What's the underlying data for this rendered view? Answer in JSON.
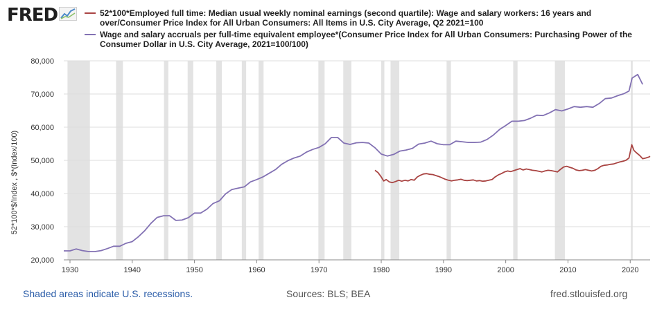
{
  "brand": {
    "name": "FRED",
    "icon": "fred-chart-icon"
  },
  "colors": {
    "series1": "#a94442",
    "series2": "#8271b3",
    "recession": "#e3e3e3",
    "grid": "#dcdcdc",
    "link": "#2a5ca8"
  },
  "footer": {
    "recession_note": "Shaded areas indicate U.S. recessions.",
    "sources": "Sources: BLS; BEA",
    "site": "fred.stlouisfed.org"
  },
  "chart_data": {
    "type": "line",
    "ylabel": "52*100*$/Index , $*(Index/100)",
    "xlim": [
      1929,
      2023.2
    ],
    "ylim": [
      20000,
      80000
    ],
    "x_ticks": [
      1930,
      1940,
      1950,
      1960,
      1970,
      1980,
      1990,
      2000,
      2010,
      2020
    ],
    "y_ticks": [
      20000,
      30000,
      40000,
      50000,
      60000,
      70000,
      80000
    ],
    "y_tick_labels": [
      "20,000",
      "30,000",
      "40,000",
      "50,000",
      "60,000",
      "70,000",
      "80,000"
    ],
    "grid": true,
    "legend_position": "top",
    "recessions": [
      [
        1929.6,
        1933.2
      ],
      [
        1937.4,
        1938.5
      ],
      [
        1945.1,
        1945.8
      ],
      [
        1948.9,
        1949.8
      ],
      [
        1953.5,
        1954.4
      ],
      [
        1957.6,
        1958.3
      ],
      [
        1960.3,
        1961.1
      ],
      [
        1969.9,
        1970.9
      ],
      [
        1973.9,
        1975.2
      ],
      [
        1980.0,
        1980.5
      ],
      [
        1981.5,
        1982.9
      ],
      [
        1990.5,
        1991.2
      ],
      [
        2001.2,
        2001.9
      ],
      [
        2007.9,
        2009.5
      ],
      [
        2020.1,
        2020.4
      ]
    ],
    "series": [
      {
        "name": "52*100*Employed full time: Median usual weekly nominal earnings (second quartile): Wage and salary workers: 16 years and over/Consumer Price Index for All Urban Consumers: All Items in U.S. City Average, Q2 2021=100",
        "color": "#a94442",
        "points": [
          [
            1979.0,
            47000
          ],
          [
            1979.5,
            46300
          ],
          [
            1980.0,
            45000
          ],
          [
            1980.4,
            43800
          ],
          [
            1980.8,
            44200
          ],
          [
            1981.3,
            43500
          ],
          [
            1981.8,
            43300
          ],
          [
            1982.3,
            43600
          ],
          [
            1982.8,
            44000
          ],
          [
            1983.3,
            43700
          ],
          [
            1983.8,
            44000
          ],
          [
            1984.3,
            43800
          ],
          [
            1984.8,
            44200
          ],
          [
            1985.3,
            44000
          ],
          [
            1985.8,
            45000
          ],
          [
            1986.3,
            45500
          ],
          [
            1986.8,
            45900
          ],
          [
            1987.3,
            46000
          ],
          [
            1987.8,
            45800
          ],
          [
            1988.3,
            45700
          ],
          [
            1988.8,
            45400
          ],
          [
            1989.3,
            45100
          ],
          [
            1989.8,
            44700
          ],
          [
            1990.3,
            44300
          ],
          [
            1990.8,
            44000
          ],
          [
            1991.3,
            43800
          ],
          [
            1991.8,
            44000
          ],
          [
            1992.3,
            44100
          ],
          [
            1992.8,
            44300
          ],
          [
            1993.3,
            44000
          ],
          [
            1993.8,
            43900
          ],
          [
            1994.3,
            44000
          ],
          [
            1994.8,
            44100
          ],
          [
            1995.3,
            43800
          ],
          [
            1995.8,
            43900
          ],
          [
            1996.3,
            43700
          ],
          [
            1996.8,
            43800
          ],
          [
            1997.3,
            44000
          ],
          [
            1997.8,
            44200
          ],
          [
            1998.3,
            45000
          ],
          [
            1998.8,
            45600
          ],
          [
            1999.3,
            46000
          ],
          [
            1999.8,
            46500
          ],
          [
            2000.3,
            46800
          ],
          [
            2000.8,
            46600
          ],
          [
            2001.3,
            46900
          ],
          [
            2001.8,
            47200
          ],
          [
            2002.3,
            47500
          ],
          [
            2002.8,
            47100
          ],
          [
            2003.3,
            47400
          ],
          [
            2003.8,
            47200
          ],
          [
            2004.3,
            47000
          ],
          [
            2004.8,
            46900
          ],
          [
            2005.3,
            46700
          ],
          [
            2005.8,
            46500
          ],
          [
            2006.3,
            46800
          ],
          [
            2006.8,
            47000
          ],
          [
            2007.3,
            46900
          ],
          [
            2007.8,
            46700
          ],
          [
            2008.3,
            46500
          ],
          [
            2008.8,
            47300
          ],
          [
            2009.3,
            48000
          ],
          [
            2009.8,
            48200
          ],
          [
            2010.3,
            47900
          ],
          [
            2010.8,
            47600
          ],
          [
            2011.3,
            47100
          ],
          [
            2011.8,
            46900
          ],
          [
            2012.3,
            47000
          ],
          [
            2012.8,
            47200
          ],
          [
            2013.3,
            47000
          ],
          [
            2013.8,
            46800
          ],
          [
            2014.3,
            47000
          ],
          [
            2014.8,
            47500
          ],
          [
            2015.3,
            48200
          ],
          [
            2015.8,
            48500
          ],
          [
            2016.3,
            48600
          ],
          [
            2016.8,
            48800
          ],
          [
            2017.3,
            48900
          ],
          [
            2017.8,
            49200
          ],
          [
            2018.3,
            49500
          ],
          [
            2018.8,
            49700
          ],
          [
            2019.3,
            50000
          ],
          [
            2019.8,
            50700
          ],
          [
            2020.25,
            54700
          ],
          [
            2020.6,
            53000
          ],
          [
            2021.0,
            52300
          ],
          [
            2021.5,
            51500
          ],
          [
            2022.0,
            50500
          ],
          [
            2022.5,
            50700
          ],
          [
            2023.0,
            51000
          ],
          [
            2023.2,
            51200
          ]
        ]
      },
      {
        "name": "Wage and salary accruals per full-time equivalent employee*(Consumer Price Index for All Urban Consumers: Purchasing Power of the Consumer Dollar in U.S. City Average, 2021=100/100)",
        "color": "#8271b3",
        "points": [
          [
            1929,
            22700
          ],
          [
            1930,
            22700
          ],
          [
            1931,
            23300
          ],
          [
            1932,
            22800
          ],
          [
            1933,
            22500
          ],
          [
            1934,
            22500
          ],
          [
            1935,
            22800
          ],
          [
            1936,
            23400
          ],
          [
            1937,
            24100
          ],
          [
            1938,
            24100
          ],
          [
            1939,
            25000
          ],
          [
            1940,
            25500
          ],
          [
            1941,
            27000
          ],
          [
            1942,
            28800
          ],
          [
            1943,
            31000
          ],
          [
            1944,
            32800
          ],
          [
            1945,
            33300
          ],
          [
            1946,
            33300
          ],
          [
            1947,
            31900
          ],
          [
            1948,
            32000
          ],
          [
            1949,
            32700
          ],
          [
            1950,
            34100
          ],
          [
            1951,
            34100
          ],
          [
            1952,
            35300
          ],
          [
            1953,
            37000
          ],
          [
            1954,
            37800
          ],
          [
            1955,
            39900
          ],
          [
            1956,
            41200
          ],
          [
            1957,
            41600
          ],
          [
            1958,
            42000
          ],
          [
            1959,
            43500
          ],
          [
            1960,
            44200
          ],
          [
            1961,
            45000
          ],
          [
            1962,
            46100
          ],
          [
            1963,
            47200
          ],
          [
            1964,
            48800
          ],
          [
            1965,
            49900
          ],
          [
            1966,
            50700
          ],
          [
            1967,
            51300
          ],
          [
            1968,
            52500
          ],
          [
            1969,
            53300
          ],
          [
            1970,
            53900
          ],
          [
            1971,
            55000
          ],
          [
            1972,
            56900
          ],
          [
            1973,
            56900
          ],
          [
            1974,
            55200
          ],
          [
            1975,
            54800
          ],
          [
            1976,
            55300
          ],
          [
            1977,
            55400
          ],
          [
            1978,
            55200
          ],
          [
            1979,
            53800
          ],
          [
            1980,
            51900
          ],
          [
            1981,
            51300
          ],
          [
            1982,
            51800
          ],
          [
            1983,
            52800
          ],
          [
            1984,
            53100
          ],
          [
            1985,
            53600
          ],
          [
            1986,
            54900
          ],
          [
            1987,
            55200
          ],
          [
            1988,
            55800
          ],
          [
            1989,
            55000
          ],
          [
            1990,
            54700
          ],
          [
            1991,
            54700
          ],
          [
            1992,
            55800
          ],
          [
            1993,
            55600
          ],
          [
            1994,
            55400
          ],
          [
            1995,
            55400
          ],
          [
            1996,
            55500
          ],
          [
            1997,
            56300
          ],
          [
            1998,
            57600
          ],
          [
            1999,
            59300
          ],
          [
            2000,
            60500
          ],
          [
            2001,
            61800
          ],
          [
            2002,
            61800
          ],
          [
            2003,
            62000
          ],
          [
            2004,
            62700
          ],
          [
            2005,
            63600
          ],
          [
            2006,
            63500
          ],
          [
            2007,
            64300
          ],
          [
            2008,
            65300
          ],
          [
            2009,
            64900
          ],
          [
            2010,
            65500
          ],
          [
            2011,
            66200
          ],
          [
            2012,
            66000
          ],
          [
            2013,
            66200
          ],
          [
            2014,
            66000
          ],
          [
            2015,
            67100
          ],
          [
            2016,
            68600
          ],
          [
            2017,
            68800
          ],
          [
            2018,
            69500
          ],
          [
            2019,
            70100
          ],
          [
            2019.8,
            70900
          ],
          [
            2020.3,
            74800
          ],
          [
            2021.2,
            75900
          ],
          [
            2022,
            72900
          ]
        ]
      }
    ]
  }
}
